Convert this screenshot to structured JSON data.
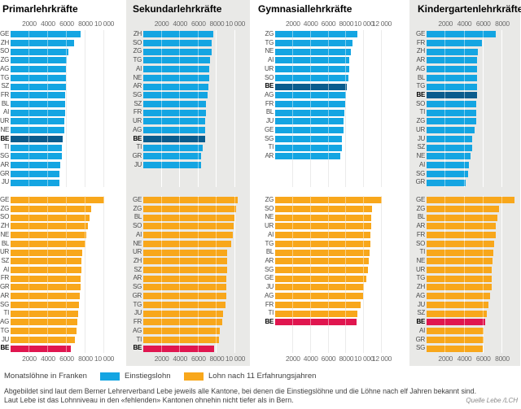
{
  "colors": {
    "blue": "#14A5E2",
    "dark_blue": "#0B5C8D",
    "orange": "#F8A71B",
    "red": "#E0164F",
    "panel_bg": "#E9E9E7",
    "grid_on_white": "#DBDBDB",
    "grid_on_gray": "#FFFFFF",
    "canton_label": "#4A4A4A",
    "axis_label": "#6B6B6B"
  },
  "chart_data": [
    {
      "type": "bar",
      "orientation": "horizontal",
      "title": "Primarlehrkräfte",
      "axis_max": 10000,
      "tick_values": [
        2000,
        4000,
        6000,
        8000,
        10000
      ],
      "tick_labels": [
        "2000",
        "4000",
        "6000",
        "8000",
        "10 000"
      ],
      "gray_bg": false,
      "highlight": "BE",
      "sections": [
        {
          "name": "Einstiegslohn",
          "categories": [
            "GE",
            "ZH",
            "SO",
            "ZG",
            "AG",
            "TG",
            "SZ",
            "FR",
            "BL",
            "AI",
            "UR",
            "NE",
            "BE",
            "TI",
            "SG",
            "AR",
            "GR",
            "JU"
          ],
          "values": [
            7450,
            6750,
            6200,
            6000,
            5950,
            5900,
            5900,
            5850,
            5850,
            5800,
            5750,
            5700,
            5600,
            5500,
            5450,
            5300,
            5250,
            5200
          ]
        },
        {
          "name": "Lohn nach 11 Erfahrungsjahren",
          "categories": [
            "GE",
            "ZG",
            "SO",
            "ZH",
            "NE",
            "BL",
            "UR",
            "SZ",
            "AI",
            "FR",
            "GR",
            "AR",
            "SG",
            "TI",
            "AG",
            "TG",
            "JU",
            "BE"
          ],
          "values": [
            10000,
            8600,
            8400,
            8250,
            8050,
            8000,
            7650,
            7600,
            7550,
            7500,
            7450,
            7350,
            7300,
            7250,
            7150,
            7050,
            6850,
            6400
          ]
        }
      ]
    },
    {
      "type": "bar",
      "orientation": "horizontal",
      "title": "Sekundarlehrkräfte",
      "axis_max": 10000,
      "tick_values": [
        2000,
        4000,
        6000,
        8000,
        10000
      ],
      "tick_labels": [
        "2000",
        "4000",
        "6000",
        "8000",
        "10 000"
      ],
      "gray_bg": true,
      "highlight": "BE",
      "sections": [
        {
          "name": "Einstiegslohn",
          "categories": [
            "ZH",
            "SO",
            "ZG",
            "TG",
            "AI",
            "NE",
            "AR",
            "SG",
            "SZ",
            "FR",
            "UR",
            "AG",
            "BE",
            "TI",
            "GR",
            "JU"
          ],
          "values": [
            7600,
            7400,
            7400,
            7250,
            7200,
            7200,
            7050,
            7000,
            6800,
            6800,
            6700,
            6700,
            6700,
            6450,
            6300,
            6250
          ]
        },
        {
          "name": "Lohn nach 11 Erfahrungsjahren",
          "categories": [
            "GE",
            "ZG",
            "BL",
            "SO",
            "AI",
            "NE",
            "UR",
            "ZH",
            "SZ",
            "AR",
            "SG",
            "GR",
            "TG",
            "JU",
            "FR",
            "AG",
            "TI",
            "BE"
          ],
          "values": [
            10300,
            10100,
            9900,
            9850,
            9700,
            9600,
            9150,
            9100,
            9100,
            9050,
            9050,
            9000,
            8900,
            8650,
            8600,
            8350,
            8200,
            7700
          ]
        }
      ]
    },
    {
      "type": "bar",
      "orientation": "horizontal",
      "title": "Gymnasiallehrkräfte",
      "axis_max": 12000,
      "tick_values": [
        2000,
        4000,
        6000,
        8000,
        10000,
        12000
      ],
      "tick_labels": [
        "2000",
        "4000",
        "6000",
        "8000",
        "10 000",
        "12 000"
      ],
      "gray_bg": false,
      "highlight": "BE",
      "sections": [
        {
          "name": "Einstiegslohn",
          "categories": [
            "ZG",
            "TG",
            "NE",
            "AI",
            "UR",
            "SO",
            "BE",
            "AG",
            "FR",
            "BL",
            "JU",
            "GE",
            "SG",
            "TI",
            "AR"
          ],
          "values": [
            9250,
            8700,
            8500,
            8350,
            8300,
            8250,
            8050,
            8000,
            7850,
            7750,
            7700,
            7650,
            7550,
            7500,
            7300
          ]
        },
        {
          "name": "Lohn nach 11 Erfahrungsjahren",
          "categories": [
            "ZG",
            "SO",
            "NE",
            "UR",
            "AI",
            "TG",
            "BL",
            "AR",
            "SG",
            "GE",
            "JU",
            "AG",
            "FR",
            "TI",
            "BE"
          ],
          "values": [
            12000,
            10900,
            10850,
            10850,
            10750,
            10700,
            10600,
            10500,
            10450,
            10300,
            10000,
            9850,
            9650,
            9250,
            9150
          ]
        }
      ]
    },
    {
      "type": "bar",
      "orientation": "horizontal",
      "title": "Kindergartenlehrkräfte",
      "axis_max": 8000,
      "tick_values": [
        2000,
        4000,
        6000,
        8000
      ],
      "tick_labels": [
        "2000",
        "4000",
        "6000",
        "8000"
      ],
      "gray_bg": true,
      "highlight": "BE",
      "sections": [
        {
          "name": "Einstiegslohn",
          "categories": [
            "GE",
            "FR",
            "ZH",
            "AR",
            "AG",
            "BL",
            "TG",
            "BE",
            "SO",
            "TI",
            "ZG",
            "UR",
            "JU",
            "SZ",
            "NE",
            "AI",
            "SG",
            "GR"
          ],
          "values": [
            7350,
            5850,
            5400,
            5350,
            5350,
            5350,
            5300,
            5300,
            5250,
            5250,
            5250,
            5050,
            4850,
            4800,
            4650,
            4500,
            4400,
            4100
          ]
        },
        {
          "name": "Lohn nach 11 Erfahrungsjahren",
          "categories": [
            "GE",
            "ZG",
            "BL",
            "AR",
            "FR",
            "SO",
            "TI",
            "NE",
            "UR",
            "TG",
            "ZH",
            "AG",
            "JU",
            "SZ",
            "BE",
            "AI",
            "GR",
            "SG"
          ],
          "values": [
            9250,
            7650,
            7450,
            7300,
            7300,
            7100,
            7050,
            7000,
            6900,
            6850,
            6850,
            6700,
            6500,
            6350,
            6200,
            6000,
            6000,
            5900
          ]
        }
      ]
    }
  ],
  "legend": {
    "prefix": "Monatslöhne in Franken",
    "items": [
      {
        "label": "Einstiegslohn",
        "color": "#14A5E2"
      },
      {
        "label": "Lohn nach 11 Erfahrungsjahren",
        "color": "#F8A71B"
      }
    ]
  },
  "footnote": {
    "line1": "Abgebildet sind laut dem Berner Lehrerverband Lebe jeweils alle Kantone, bei denen die Einstiegslöhne und die Löhne nach elf Jahren bekannt sind.",
    "line2": "Laut Lebe ist das Lohnniveau in den «fehlenden» Kantonen ohnehin nicht tiefer als in Bern.",
    "source": "Quelle Lebe /LCH"
  }
}
